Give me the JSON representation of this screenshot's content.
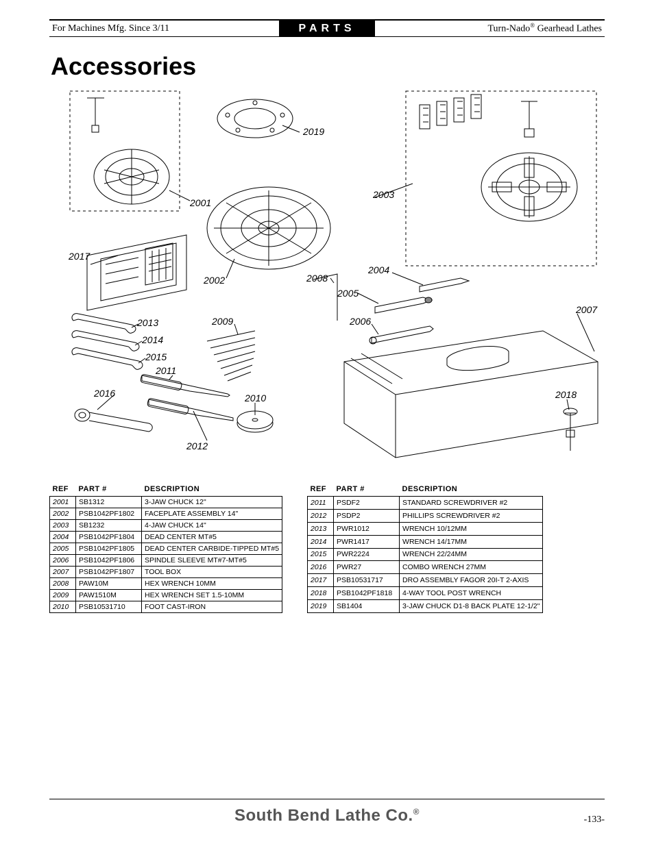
{
  "header": {
    "left": "For Machines Mfg. Since 3/11",
    "mid": "PARTS",
    "right_prefix": "Turn-Nado",
    "right_suffix": " Gearhead Lathes"
  },
  "title": "Accessories",
  "callouts": {
    "2001": "2001",
    "2002": "2002",
    "2003": "2003",
    "2004": "2004",
    "2005": "2005",
    "2006": "2006",
    "2007": "2007",
    "2008": "2008",
    "2009": "2009",
    "2010": "2010",
    "2011": "2011",
    "2012": "2012",
    "2013": "2013",
    "2014": "2014",
    "2015": "2015",
    "2016": "2016",
    "2017": "2017",
    "2018": "2018",
    "2019": "2019"
  },
  "table_headers": {
    "ref": "REF",
    "part": "PART #",
    "desc": "DESCRIPTION"
  },
  "table1": [
    {
      "ref": "2001",
      "part": "SB1312",
      "desc": "3-JAW CHUCK 12\""
    },
    {
      "ref": "2002",
      "part": "PSB1042PF1802",
      "desc": "FACEPLATE ASSEMBLY 14\""
    },
    {
      "ref": "2003",
      "part": "SB1232",
      "desc": "4-JAW CHUCK 14\""
    },
    {
      "ref": "2004",
      "part": "PSB1042PF1804",
      "desc": "DEAD CENTER MT#5"
    },
    {
      "ref": "2005",
      "part": "PSB1042PF1805",
      "desc": "DEAD CENTER CARBIDE-TIPPED MT#5"
    },
    {
      "ref": "2006",
      "part": "PSB1042PF1806",
      "desc": "SPINDLE SLEEVE MT#7-MT#5"
    },
    {
      "ref": "2007",
      "part": "PSB1042PF1807",
      "desc": "TOOL BOX"
    },
    {
      "ref": "2008",
      "part": "PAW10M",
      "desc": "HEX WRENCH 10MM"
    },
    {
      "ref": "2009",
      "part": "PAW1510M",
      "desc": "HEX WRENCH SET 1.5-10MM"
    },
    {
      "ref": "2010",
      "part": "PSB10531710",
      "desc": "FOOT CAST-IRON"
    }
  ],
  "table2": [
    {
      "ref": "2011",
      "part": "PSDF2",
      "desc": "STANDARD SCREWDRIVER #2"
    },
    {
      "ref": "2012",
      "part": "PSDP2",
      "desc": "PHILLIPS SCREWDRIVER #2"
    },
    {
      "ref": "2013",
      "part": "PWR1012",
      "desc": "WRENCH 10/12MM"
    },
    {
      "ref": "2014",
      "part": "PWR1417",
      "desc": "WRENCH 14/17MM"
    },
    {
      "ref": "2015",
      "part": "PWR2224",
      "desc": "WRENCH 22/24MM"
    },
    {
      "ref": "2016",
      "part": "PWR27",
      "desc": "COMBO WRENCH 27MM"
    },
    {
      "ref": "2017",
      "part": "PSB10531717",
      "desc": "DRO ASSEMBLY FAGOR 20I-T 2-AXIS"
    },
    {
      "ref": "2018",
      "part": "PSB1042PF1818",
      "desc": "4-WAY TOOL POST WRENCH"
    },
    {
      "ref": "2019",
      "part": "SB1404",
      "desc": "3-JAW CHUCK D1-8 BACK PLATE 12-1/2\""
    }
  ],
  "footer": {
    "brand": "South Bend Lathe Co.",
    "page": "-133-"
  }
}
